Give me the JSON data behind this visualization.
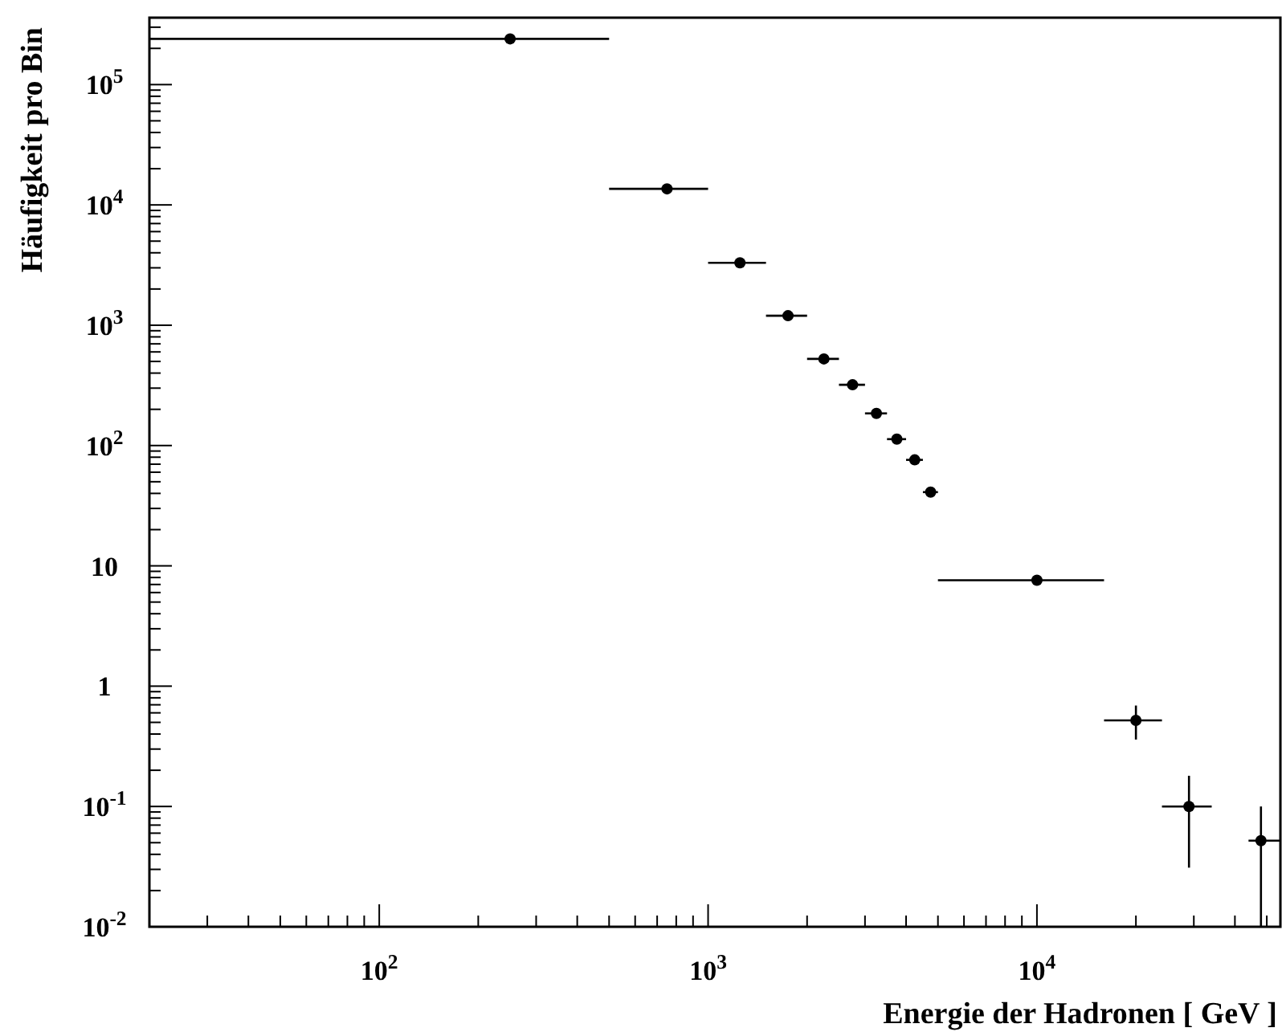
{
  "chart_data": {
    "type": "scatter",
    "xlabel": "Energie der Hadronen [ GeV ]",
    "ylabel": "Häufigkeit pro Bin",
    "log": "xy",
    "grid": false,
    "marker": "circle",
    "xlim": [
      20,
      55000
    ],
    "ylim": [
      0.01,
      360000
    ],
    "xticks": [
      {
        "value": 30,
        "label": null
      },
      {
        "value": 40,
        "label": null
      },
      {
        "value": 50,
        "label": null
      },
      {
        "value": 60,
        "label": null
      },
      {
        "value": 70,
        "label": null
      },
      {
        "value": 80,
        "label": null
      },
      {
        "value": 90,
        "label": null
      },
      {
        "value": 100,
        "label": "10$^{2}$"
      },
      {
        "value": 200,
        "label": null
      },
      {
        "value": 300,
        "label": null
      },
      {
        "value": 400,
        "label": null
      },
      {
        "value": 500,
        "label": null
      },
      {
        "value": 600,
        "label": null
      },
      {
        "value": 700,
        "label": null
      },
      {
        "value": 800,
        "label": null
      },
      {
        "value": 900,
        "label": null
      },
      {
        "value": 1000,
        "label": "10$^{3}$"
      },
      {
        "value": 2000,
        "label": null
      },
      {
        "value": 3000,
        "label": null
      },
      {
        "value": 4000,
        "label": null
      },
      {
        "value": 5000,
        "label": null
      },
      {
        "value": 6000,
        "label": null
      },
      {
        "value": 7000,
        "label": null
      },
      {
        "value": 8000,
        "label": null
      },
      {
        "value": 9000,
        "label": null
      },
      {
        "value": 10000,
        "label": "10$^{4}$"
      },
      {
        "value": 20000,
        "label": null
      },
      {
        "value": 30000,
        "label": null
      },
      {
        "value": 40000,
        "label": null
      },
      {
        "value": 50000,
        "label": null
      }
    ],
    "yticks": [
      {
        "value": 0.01,
        "label": "10$^{-2}$"
      },
      {
        "value": 0.02,
        "label": null
      },
      {
        "value": 0.03,
        "label": null
      },
      {
        "value": 0.04,
        "label": null
      },
      {
        "value": 0.05,
        "label": null
      },
      {
        "value": 0.06,
        "label": null
      },
      {
        "value": 0.07,
        "label": null
      },
      {
        "value": 0.08,
        "label": null
      },
      {
        "value": 0.09,
        "label": null
      },
      {
        "value": 0.1,
        "label": "10$^{-1}$"
      },
      {
        "value": 0.2,
        "label": null
      },
      {
        "value": 0.3,
        "label": null
      },
      {
        "value": 0.4,
        "label": null
      },
      {
        "value": 0.5,
        "label": null
      },
      {
        "value": 0.6,
        "label": null
      },
      {
        "value": 0.7,
        "label": null
      },
      {
        "value": 0.8,
        "label": null
      },
      {
        "value": 0.9,
        "label": null
      },
      {
        "value": 1,
        "label": "1"
      },
      {
        "value": 2,
        "label": null
      },
      {
        "value": 3,
        "label": null
      },
      {
        "value": 4,
        "label": null
      },
      {
        "value": 5,
        "label": null
      },
      {
        "value": 6,
        "label": null
      },
      {
        "value": 7,
        "label": null
      },
      {
        "value": 8,
        "label": null
      },
      {
        "value": 9,
        "label": null
      },
      {
        "value": 10,
        "label": "10"
      },
      {
        "value": 20,
        "label": null
      },
      {
        "value": 30,
        "label": null
      },
      {
        "value": 40,
        "label": null
      },
      {
        "value": 50,
        "label": null
      },
      {
        "value": 60,
        "label": null
      },
      {
        "value": 70,
        "label": null
      },
      {
        "value": 80,
        "label": null
      },
      {
        "value": 90,
        "label": null
      },
      {
        "value": 100,
        "label": "10$^{2}$"
      },
      {
        "value": 200,
        "label": null
      },
      {
        "value": 300,
        "label": null
      },
      {
        "value": 400,
        "label": null
      },
      {
        "value": 500,
        "label": null
      },
      {
        "value": 600,
        "label": null
      },
      {
        "value": 700,
        "label": null
      },
      {
        "value": 800,
        "label": null
      },
      {
        "value": 900,
        "label": null
      },
      {
        "value": 1000,
        "label": "10$^{3}$"
      },
      {
        "value": 2000,
        "label": null
      },
      {
        "value": 3000,
        "label": null
      },
      {
        "value": 4000,
        "label": null
      },
      {
        "value": 5000,
        "label": null
      },
      {
        "value": 6000,
        "label": null
      },
      {
        "value": 7000,
        "label": null
      },
      {
        "value": 8000,
        "label": null
      },
      {
        "value": 9000,
        "label": null
      },
      {
        "value": 10000,
        "label": "10$^{4}$"
      },
      {
        "value": 20000,
        "label": null
      },
      {
        "value": 30000,
        "label": null
      },
      {
        "value": 40000,
        "label": null
      },
      {
        "value": 50000,
        "label": null
      },
      {
        "value": 60000,
        "label": null
      },
      {
        "value": 70000,
        "label": null
      },
      {
        "value": 80000,
        "label": null
      },
      {
        "value": 90000,
        "label": null
      },
      {
        "value": 100000,
        "label": "10$^{5}$"
      },
      {
        "value": 200000,
        "label": null
      },
      {
        "value": 300000,
        "label": null
      }
    ],
    "series": [
      {
        "color": "#000000",
        "x": [
          250,
          750,
          1250,
          1750,
          2250,
          2750,
          3250,
          3750,
          4250,
          4750,
          10000,
          20000,
          29000,
          48000
        ],
        "values": [
          240000,
          13600,
          3300,
          1200,
          525,
          320,
          185,
          113,
          76,
          41,
          7.6,
          0.52,
          0.1,
          0.052
        ],
        "xerrors": [
          [
            20,
            500
          ],
          [
            500,
            1000
          ],
          [
            1000,
            1500
          ],
          [
            1500,
            2000
          ],
          [
            2000,
            2500
          ],
          [
            2500,
            3000
          ],
          [
            3000,
            3500
          ],
          [
            3500,
            4000
          ],
          [
            4000,
            4500
          ],
          [
            4500,
            5000
          ],
          [
            5000,
            16000
          ],
          [
            16000,
            24000
          ],
          [
            24000,
            34000
          ],
          [
            44000,
            55000
          ]
        ],
        "errors": [
          null,
          null,
          null,
          null,
          null,
          null,
          null,
          null,
          null,
          null,
          null,
          [
            0.36,
            0.69
          ],
          [
            0.031,
            0.18
          ],
          [
            0.01,
            0.1
          ]
        ]
      }
    ]
  }
}
